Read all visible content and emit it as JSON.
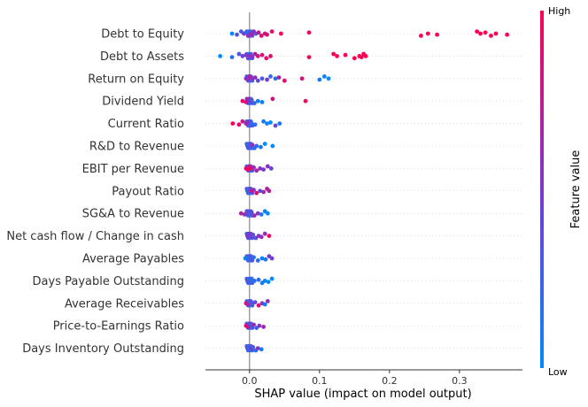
{
  "chart_data": {
    "type": "scatter",
    "subtype": "shap-beeswarm",
    "title": "",
    "xlabel": "SHAP value (impact on model output)",
    "xlim": [
      -0.063,
      0.39
    ],
    "xticks": [
      0.0,
      0.1,
      0.2,
      0.3
    ],
    "xtick_labels": [
      "0.0",
      "0.1",
      "0.2",
      "0.3"
    ],
    "colorbar": {
      "label": "Feature value",
      "high": "High",
      "low": "Low"
    },
    "colors": {
      "low": "#008afb",
      "high": "#ff0052",
      "axis": "#888888",
      "grid": "#cccccc"
    },
    "features": [
      {
        "name": "Debt to Equity",
        "points": [
          [
            -0.025,
            0.0
          ],
          [
            -0.018,
            0.35
          ],
          [
            -0.012,
            0.3
          ],
          [
            -0.008,
            0.5
          ],
          [
            -0.005,
            0.2
          ],
          [
            -0.002,
            0.6
          ],
          [
            0.0,
            0.4
          ],
          [
            0.003,
            0.7
          ],
          [
            0.006,
            0.55
          ],
          [
            0.009,
            0.35
          ],
          [
            0.013,
            0.75
          ],
          [
            0.017,
            0.85
          ],
          [
            0.022,
            0.8
          ],
          [
            0.025,
            0.9
          ],
          [
            0.032,
            0.9
          ],
          [
            0.045,
            0.95
          ],
          [
            0.085,
            0.95
          ],
          [
            0.245,
            1.0
          ],
          [
            0.255,
            1.0
          ],
          [
            0.268,
            1.0
          ],
          [
            0.325,
            1.0
          ],
          [
            0.33,
            1.0
          ],
          [
            0.337,
            1.0
          ],
          [
            0.345,
            1.0
          ],
          [
            0.352,
            1.0
          ],
          [
            0.368,
            1.0
          ]
        ]
      },
      {
        "name": "Debt to Assets",
        "points": [
          [
            -0.042,
            0.0
          ],
          [
            -0.025,
            0.15
          ],
          [
            -0.015,
            0.3
          ],
          [
            -0.01,
            0.45
          ],
          [
            -0.005,
            0.5
          ],
          [
            -0.002,
            0.35
          ],
          [
            0.0,
            0.6
          ],
          [
            0.004,
            0.55
          ],
          [
            0.008,
            0.7
          ],
          [
            0.012,
            0.8
          ],
          [
            0.018,
            0.85
          ],
          [
            0.024,
            0.9
          ],
          [
            0.03,
            0.9
          ],
          [
            0.085,
            0.95
          ],
          [
            0.12,
            1.0
          ],
          [
            0.125,
            1.0
          ],
          [
            0.137,
            1.0
          ],
          [
            0.15,
            1.0
          ],
          [
            0.157,
            1.0
          ],
          [
            0.16,
            1.0
          ],
          [
            0.163,
            1.0
          ],
          [
            0.166,
            1.0
          ]
        ]
      },
      {
        "name": "Return on Equity",
        "points": [
          [
            -0.005,
            0.5
          ],
          [
            -0.002,
            0.6
          ],
          [
            0.0,
            0.7
          ],
          [
            0.004,
            0.55
          ],
          [
            0.008,
            0.6
          ],
          [
            0.012,
            0.4
          ],
          [
            0.018,
            0.3
          ],
          [
            0.025,
            0.5
          ],
          [
            0.03,
            0.2
          ],
          [
            0.037,
            0.15
          ],
          [
            0.042,
            0.7
          ],
          [
            0.05,
            0.9
          ],
          [
            0.075,
            0.85
          ],
          [
            0.1,
            0.1
          ],
          [
            0.107,
            0.05
          ],
          [
            0.113,
            0.0
          ]
        ]
      },
      {
        "name": "Dividend Yield",
        "points": [
          [
            -0.01,
            0.9
          ],
          [
            -0.005,
            0.85
          ],
          [
            -0.002,
            0.7
          ],
          [
            0.0,
            0.5
          ],
          [
            0.003,
            0.3
          ],
          [
            0.007,
            0.2
          ],
          [
            0.012,
            0.1
          ],
          [
            0.018,
            0.05
          ],
          [
            0.033,
            0.8
          ],
          [
            0.08,
            0.95
          ]
        ]
      },
      {
        "name": "Current Ratio",
        "points": [
          [
            -0.024,
            1.0
          ],
          [
            -0.015,
            0.9
          ],
          [
            -0.01,
            0.8
          ],
          [
            -0.005,
            0.7
          ],
          [
            -0.002,
            0.55
          ],
          [
            0.0,
            0.3
          ],
          [
            0.003,
            0.2
          ],
          [
            0.008,
            0.15
          ],
          [
            0.02,
            0.1
          ],
          [
            0.025,
            0.05
          ],
          [
            0.03,
            0.0
          ],
          [
            0.037,
            0.4
          ],
          [
            0.043,
            0.1
          ]
        ]
      },
      {
        "name": "R&D to Revenue",
        "points": [
          [
            -0.003,
            0.2
          ],
          [
            -0.001,
            0.35
          ],
          [
            0.0,
            0.3
          ],
          [
            0.002,
            0.25
          ],
          [
            0.004,
            0.6
          ],
          [
            0.007,
            0.15
          ],
          [
            0.01,
            0.2
          ],
          [
            0.016,
            0.1
          ],
          [
            0.022,
            0.0
          ],
          [
            0.033,
            0.0
          ]
        ]
      },
      {
        "name": "EBIT per Revenue",
        "points": [
          [
            -0.005,
            0.9
          ],
          [
            -0.002,
            0.95
          ],
          [
            0.0,
            0.85
          ],
          [
            0.003,
            0.9
          ],
          [
            0.006,
            0.6
          ],
          [
            0.01,
            0.7
          ],
          [
            0.015,
            0.55
          ],
          [
            0.02,
            0.5
          ],
          [
            0.026,
            0.55
          ],
          [
            0.031,
            0.45
          ]
        ]
      },
      {
        "name": "Payout Ratio",
        "points": [
          [
            -0.003,
            0.2
          ],
          [
            -0.001,
            0.3
          ],
          [
            0.0,
            0.35
          ],
          [
            0.003,
            0.8
          ],
          [
            0.006,
            0.6
          ],
          [
            0.01,
            0.9
          ],
          [
            0.015,
            0.4
          ],
          [
            0.02,
            0.6
          ],
          [
            0.025,
            0.75
          ],
          [
            0.028,
            0.7
          ]
        ]
      },
      {
        "name": "SG&A to Revenue",
        "points": [
          [
            -0.012,
            0.7
          ],
          [
            -0.007,
            0.6
          ],
          [
            -0.003,
            0.4
          ],
          [
            0.0,
            0.3
          ],
          [
            0.003,
            0.35
          ],
          [
            0.007,
            0.65
          ],
          [
            0.012,
            0.55
          ],
          [
            0.017,
            0.1
          ],
          [
            0.022,
            0.05
          ],
          [
            0.026,
            0.0
          ]
        ]
      },
      {
        "name": "Net cash flow / Change in cash",
        "points": [
          [
            -0.003,
            0.5
          ],
          [
            -0.001,
            0.55
          ],
          [
            0.0,
            0.5
          ],
          [
            0.002,
            0.45
          ],
          [
            0.005,
            0.4
          ],
          [
            0.009,
            0.35
          ],
          [
            0.013,
            0.55
          ],
          [
            0.017,
            0.6
          ],
          [
            0.022,
            0.6
          ],
          [
            0.028,
            0.95
          ]
        ]
      },
      {
        "name": "Average Payables",
        "points": [
          [
            -0.006,
            0.0
          ],
          [
            -0.002,
            0.2
          ],
          [
            0.0,
            0.3
          ],
          [
            0.003,
            0.35
          ],
          [
            0.006,
            0.15
          ],
          [
            0.012,
            0.2
          ],
          [
            0.018,
            0.05
          ],
          [
            0.023,
            0.1
          ],
          [
            0.028,
            0.5
          ],
          [
            0.032,
            0.45
          ]
        ]
      },
      {
        "name": "Days Payable Outstanding",
        "points": [
          [
            -0.003,
            0.3
          ],
          [
            0.0,
            0.25
          ],
          [
            0.003,
            0.2
          ],
          [
            0.007,
            0.15
          ],
          [
            0.013,
            0.2
          ],
          [
            0.018,
            0.1
          ],
          [
            0.022,
            0.05
          ],
          [
            0.027,
            0.0
          ],
          [
            0.032,
            0.0
          ]
        ]
      },
      {
        "name": "Average Receivables",
        "points": [
          [
            -0.005,
            0.8
          ],
          [
            -0.002,
            0.7
          ],
          [
            0.0,
            0.35
          ],
          [
            0.004,
            0.3
          ],
          [
            0.008,
            0.4
          ],
          [
            0.013,
            0.9
          ],
          [
            0.018,
            0.5
          ],
          [
            0.022,
            0.1
          ],
          [
            0.026,
            0.6
          ]
        ]
      },
      {
        "name": "Price-to-Earnings Ratio",
        "points": [
          [
            -0.005,
            0.85
          ],
          [
            -0.002,
            0.8
          ],
          [
            0.0,
            0.4
          ],
          [
            0.003,
            0.3
          ],
          [
            0.006,
            0.6
          ],
          [
            0.01,
            0.3
          ],
          [
            0.014,
            0.55
          ],
          [
            0.02,
            0.65
          ]
        ]
      },
      {
        "name": "Days Inventory Outstanding",
        "points": [
          [
            -0.003,
            0.3
          ],
          [
            -0.001,
            0.2
          ],
          [
            0.0,
            0.25
          ],
          [
            0.002,
            0.5
          ],
          [
            0.005,
            0.3
          ],
          [
            0.009,
            0.15
          ],
          [
            0.012,
            0.55
          ],
          [
            0.017,
            0.1
          ]
        ]
      }
    ]
  }
}
